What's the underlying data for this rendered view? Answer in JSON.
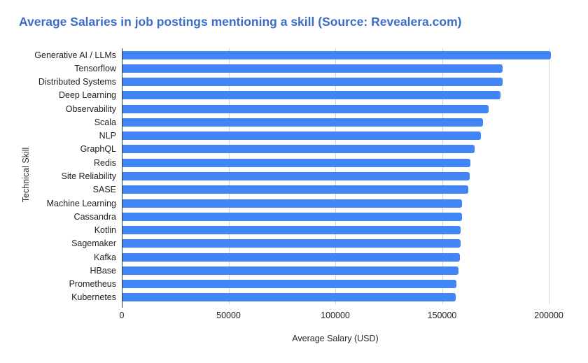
{
  "header": {
    "title": "Average Salaries in job postings mentioning a skill (Source: Revealera.com)"
  },
  "colors": {
    "title_blue": "#3d6cc8",
    "bar_blue": "#4285f4",
    "gridline_gray": "#d6d6d6",
    "baseline_dark": "#333333",
    "label_dark": "#222222"
  },
  "chart_data": {
    "type": "bar",
    "orientation": "horizontal",
    "title": "Average Salaries in job postings mentioning a skill (Source: Revealera.com)",
    "xlabel": "Average Salary (USD)",
    "ylabel": "Technical Skill",
    "xlim": [
      0,
      200000
    ],
    "xticks": [
      0,
      50000,
      100000,
      150000,
      200000
    ],
    "xtick_labels": [
      "0",
      "50000",
      "100000",
      "150000",
      "200000"
    ],
    "grid": true,
    "legend": false,
    "categories": [
      "Generative AI / LLMs",
      "Tensorflow",
      "Distributed Systems",
      "Deep Learning",
      "Observability",
      "Scala",
      "NLP",
      "GraphQL",
      "Redis",
      "Site Reliability",
      "SASE",
      "Machine Learning",
      "Cassandra",
      "Kotlin",
      "Sagemaker",
      "Kafka",
      "HBase",
      "Prometheus",
      "Kubernetes"
    ],
    "values": [
      200500,
      178000,
      178000,
      177000,
      171500,
      169000,
      168000,
      165000,
      163000,
      162500,
      162000,
      159000,
      159000,
      158500,
      158500,
      158000,
      157500,
      156500,
      156000
    ]
  }
}
